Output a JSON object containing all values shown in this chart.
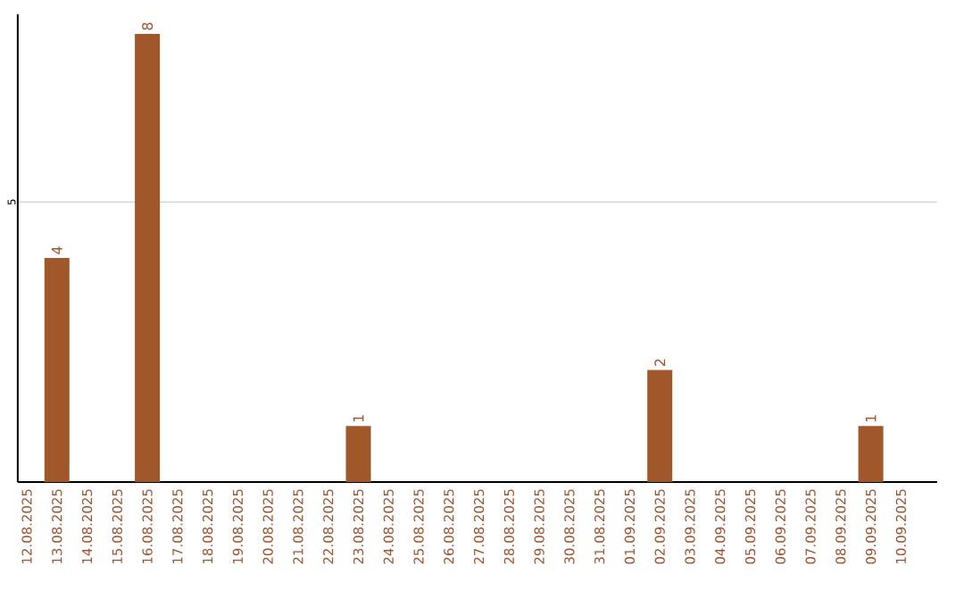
{
  "chart_data": {
    "type": "bar",
    "categories": [
      "12.08.2025",
      "13.08.2025",
      "14.08.2025",
      "15.08.2025",
      "16.08.2025",
      "17.08.2025",
      "18.08.2025",
      "19.08.2025",
      "20.08.2025",
      "21.08.2025",
      "22.08.2025",
      "23.08.2025",
      "24.08.2025",
      "25.08.2025",
      "26.08.2025",
      "27.08.2025",
      "28.08.2025",
      "29.08.2025",
      "30.08.2025",
      "31.08.2025",
      "01.09.2025",
      "02.09.2025",
      "03.09.2025",
      "04.09.2025",
      "05.09.2025",
      "06.09.2025",
      "07.09.2025",
      "08.09.2025",
      "09.09.2025",
      "10.09.2025"
    ],
    "values": [
      0,
      4,
      0,
      0,
      8,
      0,
      0,
      0,
      0,
      0,
      0,
      1,
      0,
      0,
      0,
      0,
      0,
      0,
      0,
      0,
      0,
      2,
      0,
      0,
      0,
      0,
      0,
      0,
      1,
      0
    ],
    "value_labels": [
      null,
      "4",
      null,
      null,
      "8",
      null,
      null,
      null,
      null,
      null,
      null,
      "1",
      null,
      null,
      null,
      null,
      null,
      null,
      null,
      null,
      null,
      "2",
      null,
      null,
      null,
      null,
      null,
      null,
      "1",
      null
    ],
    "color": "#a0582a",
    "ylim": [
      0,
      8.35
    ],
    "yticks": [
      5
    ],
    "grid": "y"
  }
}
